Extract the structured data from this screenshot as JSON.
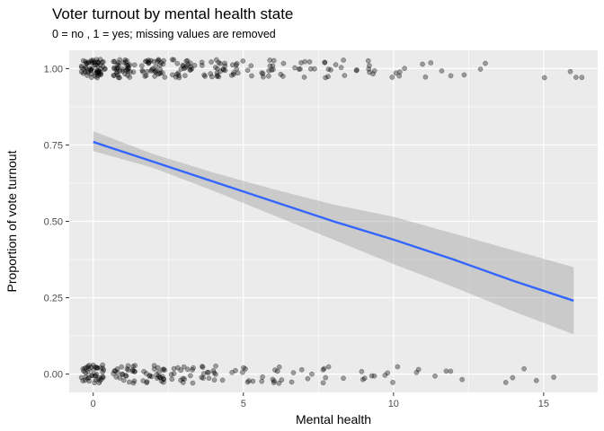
{
  "chart_data": {
    "type": "scatter",
    "title": "Voter turnout by mental health state",
    "subtitle": "0 = no , 1 = yes; missing values are removed",
    "xlabel": "Mental health",
    "ylabel": "Proportion of vote turnout",
    "xlim": [
      -0.8,
      16.8
    ],
    "ylim": [
      -0.06,
      1.06
    ],
    "x_ticks": [
      0,
      5,
      10,
      15
    ],
    "x_tick_labels": [
      "0",
      "5",
      "10",
      "15"
    ],
    "y_ticks": [
      0,
      0.25,
      0.5,
      0.75,
      1
    ],
    "y_tick_labels": [
      "0.00",
      "0.25",
      "0.50",
      "0.75",
      "1.00"
    ],
    "grid": true,
    "legend": "none",
    "points": {
      "jitter_width": 0.4,
      "jitter_height": 0.03,
      "counts_y1": [
        60,
        40,
        35,
        25,
        22,
        12,
        14,
        9,
        10,
        8,
        5,
        3,
        3,
        2,
        0,
        1,
        3
      ],
      "counts_y0": [
        42,
        25,
        25,
        16,
        14,
        8,
        10,
        5,
        6,
        5,
        4,
        3,
        3,
        0,
        3,
        2,
        0
      ],
      "color": "#000000",
      "alpha": 0.35
    },
    "fit": {
      "x": [
        0,
        2,
        4,
        6,
        8,
        10,
        12,
        14,
        16
      ],
      "y": [
        0.76,
        0.695,
        0.63,
        0.565,
        0.5,
        0.44,
        0.375,
        0.305,
        0.24
      ],
      "ci_lower": [
        0.73,
        0.675,
        0.6,
        0.52,
        0.44,
        0.36,
        0.285,
        0.205,
        0.13
      ],
      "ci_upper": [
        0.795,
        0.72,
        0.66,
        0.605,
        0.555,
        0.515,
        0.46,
        0.405,
        0.35
      ],
      "line_color": "#3366FF",
      "band_color": "#999999"
    },
    "panel_color": "#EBEBEB",
    "grid_color": "#FFFFFF"
  }
}
